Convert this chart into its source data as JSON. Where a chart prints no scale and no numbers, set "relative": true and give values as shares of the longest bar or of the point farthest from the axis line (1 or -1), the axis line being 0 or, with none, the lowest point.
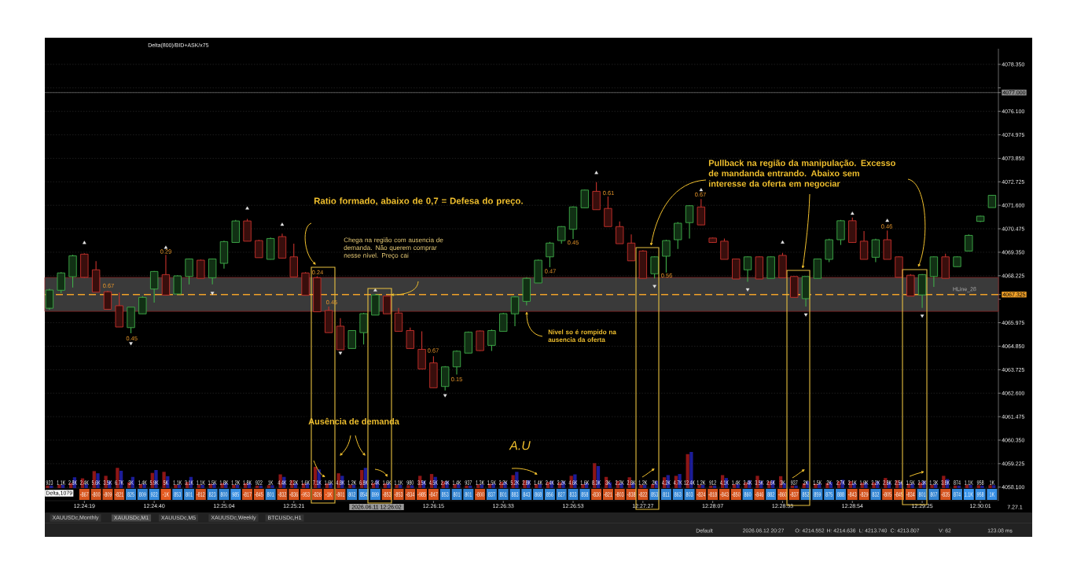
{
  "chart_data": [
    {
      "type": "candlestick",
      "title": "Delta(800)/BID+ASK/x75",
      "categories": [
        null,
        null,
        null,
        "12:24:19",
        null,
        null,
        null,
        null,
        null,
        "12:24:40",
        null,
        null,
        null,
        null,
        null,
        "12:25:04",
        null,
        null,
        null,
        null,
        null,
        "12:25:21",
        null,
        null,
        null,
        null,
        null,
        null,
        null,
        null,
        null,
        null,
        null,
        "12:26:15",
        null,
        null,
        null,
        null,
        null,
        "12:26:33",
        null,
        null,
        null,
        null,
        null,
        "12:26:53",
        null,
        null,
        null,
        null,
        null,
        "12:27:27",
        null,
        null,
        null,
        null,
        null,
        "12:28:07",
        null,
        null,
        null,
        null,
        null,
        "12:28:33",
        null,
        null,
        null,
        null,
        null,
        "12:28:54",
        null,
        null,
        null,
        null,
        null,
        "12:29:25",
        null,
        null,
        null,
        null,
        "12:30:01",
        null
      ],
      "ohlc": [
        [
          4066.67,
          4067.6,
          4066.6,
          4067.54
        ],
        [
          4067.53,
          4068.4,
          4067.39,
          4068.36
        ],
        [
          4068.18,
          4069.23,
          4067.66,
          4069.18
        ],
        [
          4069.26,
          4069.3,
          4068.12,
          4068.15
        ],
        [
          4068.51,
          4068.92,
          4067.44,
          4067.44
        ],
        [
          4067.46,
          4067.5,
          4066.62,
          4066.62
        ],
        [
          4066.79,
          4067.42,
          4065.77,
          4065.77
        ],
        [
          4065.74,
          4066.72,
          4065.47,
          4066.72
        ],
        [
          4066.4,
          4067.25,
          4066.4,
          4067.19
        ],
        [
          4067.59,
          4068.45,
          4066.94,
          4068.43
        ],
        [
          4068.28,
          4069.23,
          4067.3,
          4067.3
        ],
        [
          4067.35,
          4068.25,
          4067.35,
          4068.22
        ],
        [
          4068.19,
          4069.05,
          4067.81,
          4069.03
        ],
        [
          4068.97,
          4069.0,
          4068.1,
          4068.1
        ],
        [
          4068.13,
          4069.05,
          4067.81,
          4069.03
        ],
        [
          4068.82,
          4069.9,
          4068.57,
          4069.86
        ],
        [
          4069.82,
          4070.9,
          4069.82,
          4070.85
        ],
        [
          4070.85,
          4070.95,
          4069.88,
          4069.88
        ],
        [
          4069.91,
          4069.95,
          4069.09,
          4069.09
        ],
        [
          4069.01,
          4070.05,
          4069.0,
          4070.01
        ],
        [
          4070.1,
          4070.24,
          4069.07,
          4069.07
        ],
        [
          4069.13,
          4069.76,
          4068.17,
          4068.17
        ],
        [
          4068.36,
          4068.4,
          4067.29,
          4067.29
        ],
        [
          4068.13,
          4068.2,
          4066.5,
          4066.5
        ],
        [
          4066.56,
          4066.75,
          4065.5,
          4065.5
        ],
        [
          4065.81,
          4066.19,
          4064.68,
          4064.68
        ],
        [
          4064.74,
          4065.6,
          4064.74,
          4065.6
        ],
        [
          4065.5,
          4066.45,
          4064.93,
          4066.41
        ],
        [
          4066.34,
          4067.35,
          4066.34,
          4067.31
        ],
        [
          4067.25,
          4067.3,
          4066.4,
          4066.4
        ],
        [
          4066.44,
          4066.68,
          4065.56,
          4065.56
        ],
        [
          4065.6,
          4065.74,
          4064.74,
          4064.74
        ],
        [
          4064.7,
          4065.56,
          4063.76,
          4063.76
        ],
        [
          4064.05,
          4064.37,
          4062.86,
          4062.86
        ],
        [
          4062.92,
          4063.9,
          4062.73,
          4063.86
        ],
        [
          4063.86,
          4064.65,
          4063.49,
          4064.61
        ],
        [
          4064.52,
          4065.55,
          4064.52,
          4065.52
        ],
        [
          4065.58,
          4065.6,
          4064.62,
          4064.64
        ],
        [
          4064.89,
          4065.65,
          4064.62,
          4065.6
        ],
        [
          4065.56,
          4066.45,
          4065.56,
          4066.41
        ],
        [
          4066.4,
          4067.25,
          4065.81,
          4067.21
        ],
        [
          4067.0,
          4068.15,
          4066.81,
          4068.1
        ],
        [
          4067.88,
          4069.0,
          4067.88,
          4068.97
        ],
        [
          4069.13,
          4069.85,
          4068.63,
          4069.79
        ],
        [
          4069.91,
          4070.6,
          4069.76,
          4070.58
        ],
        [
          4070.45,
          4071.55,
          4069.99,
          4071.52
        ],
        [
          4071.48,
          4072.35,
          4071.48,
          4072.33
        ],
        [
          4072.27,
          4072.71,
          4071.39,
          4071.39
        ],
        [
          4071.45,
          4072.02,
          4070.58,
          4070.58
        ],
        [
          4070.58,
          4070.83,
          4069.76,
          4069.76
        ],
        [
          4069.79,
          4070.2,
          4068.94,
          4068.94
        ],
        [
          4069.41,
          4069.45,
          4068.1,
          4068.1
        ],
        [
          4068.32,
          4069.15,
          4068.1,
          4069.13
        ],
        [
          4069.16,
          4069.95,
          4068.38,
          4069.91
        ],
        [
          4069.95,
          4070.8,
          4069.51,
          4070.74
        ],
        [
          4070.77,
          4071.6,
          4070.01,
          4071.58
        ],
        [
          4071.52,
          4071.9,
          4070.66,
          4070.66
        ],
        [
          4070.03,
          4070.05,
          4069.8,
          4069.82
        ],
        [
          4069.88,
          4070.01,
          4069.01,
          4069.01
        ],
        [
          4069.03,
          4069.05,
          4068.07,
          4068.07
        ],
        [
          4068.51,
          4069.15,
          4067.94,
          4069.13
        ],
        [
          4069.13,
          4069.15,
          4068.07,
          4068.07
        ],
        [
          4068.1,
          4069.15,
          4068.1,
          4069.13
        ],
        [
          4069.2,
          4069.32,
          4068.13,
          4068.13
        ],
        [
          4068.19,
          4068.2,
          4067.19,
          4067.19
        ],
        [
          4067.13,
          4068.2,
          4066.75,
          4068.19
        ],
        [
          4068.1,
          4069.05,
          4068.1,
          4069.03
        ],
        [
          4069.01,
          4070.0,
          4068.88,
          4069.95
        ],
        [
          4069.95,
          4070.9,
          4069.7,
          4070.86
        ],
        [
          4070.86,
          4071.01,
          4069.82,
          4069.82
        ],
        [
          4069.88,
          4070.36,
          4069.01,
          4069.01
        ],
        [
          4069.11,
          4070.0,
          4068.88,
          4069.95
        ],
        [
          4069.95,
          4070.39,
          4069.01,
          4069.01
        ],
        [
          4069.13,
          4069.15,
          4068.15,
          4068.15
        ],
        [
          4068.25,
          4068.3,
          4067.25,
          4067.25
        ],
        [
          4067.31,
          4068.3,
          4066.68,
          4068.28
        ],
        [
          4068.19,
          4069.15,
          4067.69,
          4069.13
        ],
        [
          4069.13,
          4069.28,
          4068.1,
          4068.1
        ],
        [
          4068.66,
          4069.15,
          4068.66,
          4069.13
        ],
        [
          4069.41,
          4070.2,
          4069.41,
          4070.16
        ],
        [
          4070.83,
          4071.1,
          4070.8,
          4071.08
        ],
        [
          4071.49,
          4072.1,
          4071.49,
          4072.08
        ]
      ],
      "colors": [
        "#3fae49",
        "#3fae49",
        "#3fae49",
        "#c8322c",
        "#c8322c",
        "#c8322c",
        "#c8322c",
        "#3fae49",
        "#3fae49",
        "#3fae49",
        "#c8322c",
        "#3fae49",
        "#3fae49",
        "#c8322c",
        "#3fae49",
        "#3fae49",
        "#3fae49",
        "#c8322c",
        "#c8322c",
        "#3fae49",
        "#c8322c",
        "#c8322c",
        "#c8322c",
        "#c8322c",
        "#c8322c",
        "#c8322c",
        "#3fae49",
        "#3fae49",
        "#3fae49",
        "#c8322c",
        "#c8322c",
        "#c8322c",
        "#c8322c",
        "#c8322c",
        "#3fae49",
        "#3fae49",
        "#3fae49",
        "#c8322c",
        "#3fae49",
        "#3fae49",
        "#3fae49",
        "#3fae49",
        "#3fae49",
        "#3fae49",
        "#3fae49",
        "#3fae49",
        "#3fae49",
        "#c8322c",
        "#c8322c",
        "#c8322c",
        "#c8322c",
        "#c8322c",
        "#3fae49",
        "#3fae49",
        "#3fae49",
        "#3fae49",
        "#c8322c",
        "#c8322c",
        "#c8322c",
        "#c8322c",
        "#3fae49",
        "#c8322c",
        "#3fae49",
        "#c8322c",
        "#c8322c",
        "#3fae49",
        "#3fae49",
        "#3fae49",
        "#3fae49",
        "#c8322c",
        "#c8322c",
        "#3fae49",
        "#c8322c",
        "#c8322c",
        "#c8322c",
        "#3fae49",
        "#3fae49",
        "#c8322c",
        "#3fae49",
        "#3fae49",
        "#3fae49",
        "#3fae49"
      ],
      "series": [
        {
          "type": "scatter",
          "marker": "triangle",
          "color": "#e6e6e6",
          "values": [
            null,
            null,
            null,
            4069.8,
            null,
            null,
            null,
            null,
            null,
            null,
            4069.57,
            null,
            null,
            null,
            null,
            null,
            null,
            4071.45,
            null,
            null,
            4070.67,
            null,
            null,
            null,
            null,
            null,
            null,
            null,
            4067.53,
            null,
            null,
            null,
            null,
            null,
            null,
            null,
            null,
            null,
            null,
            null,
            null,
            null,
            null,
            null,
            null,
            null,
            null,
            4073.15,
            null,
            null,
            null,
            null,
            null,
            null,
            null,
            null,
            4072.33,
            null,
            null,
            null,
            null,
            null,
            null,
            4069.82,
            null,
            null,
            null,
            null,
            null,
            4071.2,
            null,
            null,
            4070.86,
            null,
            null,
            null,
            null,
            null,
            null,
            null,
            null,
            null
          ]
        },
        {
          "type": "scatter",
          "marker": "triangle_down",
          "color": "#e6e6e6",
          "values": [
            null,
            null,
            null,
            null,
            null,
            null,
            null,
            4064.99,
            null,
            null,
            null,
            null,
            null,
            null,
            4067.4,
            null,
            null,
            null,
            null,
            null,
            null,
            null,
            null,
            null,
            null,
            4064.53,
            null,
            null,
            null,
            null,
            null,
            null,
            null,
            null,
            4062.5,
            null,
            null,
            null,
            null,
            null,
            null,
            null,
            null,
            null,
            null,
            null,
            null,
            null,
            null,
            null,
            null,
            null,
            4067.73,
            null,
            null,
            null,
            null,
            null,
            null,
            null,
            4067.57,
            null,
            null,
            null,
            null,
            4066.37,
            null,
            null,
            null,
            null,
            null,
            null,
            null,
            null,
            null,
            4066.31,
            null,
            null,
            null,
            null,
            null,
            null
          ]
        }
      ],
      "ylim": [
        4057.45,
        4079.1
      ],
      "yticks": [
        {
          "value": 4058.1,
          "label": "4058.100"
        },
        {
          "value": 4059.225,
          "label": "4059.225"
        },
        {
          "value": 4060.35,
          "label": "4060.350"
        },
        {
          "value": 4061.475,
          "label": "4061.475"
        },
        {
          "value": 4062.6,
          "label": "4062.600"
        },
        {
          "value": 4063.725,
          "label": "4063.725"
        },
        {
          "value": 4064.85,
          "label": "4064.850"
        },
        {
          "value": 4065.975,
          "label": "4065.975"
        },
        {
          "value": 4067.1,
          "label": null
        },
        {
          "value": 4067.325,
          "label": "4067.325"
        },
        {
          "value": 4068.225,
          "label": "4068.225"
        },
        {
          "value": 4069.35,
          "label": "4069.350"
        },
        {
          "value": 4070.475,
          "label": "4070.475"
        },
        {
          "value": 4071.6,
          "label": "4071.600"
        },
        {
          "value": 4072.725,
          "label": "4072.725"
        },
        {
          "value": 4073.85,
          "label": "4073.850"
        },
        {
          "value": 4074.975,
          "label": "4074.975"
        },
        {
          "value": 4076.1,
          "label": "4076.100"
        },
        {
          "value": 4077.0,
          "label": "4077.000"
        },
        {
          "value": 4077.225,
          "label": null
        },
        {
          "value": 4078.35,
          "label": "4078.350"
        }
      ],
      "grid": "y",
      "ref_lines": [
        {
          "axis": "y",
          "value": 4077.0,
          "color": "#8c8c8c"
        },
        {
          "axis": "y",
          "value": 4067.325,
          "label": "HLine_28",
          "color": "#f0a028",
          "line_style": "dashed"
        }
      ],
      "bands": [
        {
          "axis": "y",
          "from": 4066.52,
          "to": 4068.14,
          "color": "#3a3a3a"
        }
      ],
      "annotations": [
        "Ratio formado, abaixo de 0,7 = Defesa do preço.",
        "Chega na região com ausencia de demanda. Não querem comprar nesse nível. Preço cai",
        {
          "text": "Nivel so é rompido na ausencia da oferta",
          "y": 4066.52
        },
        "Pullback na região da manipulação. Excesso de mandanda entrando. Abaixo sem interesse da oferta em negociar",
        "Ausência de demanda",
        "A.U",
        "0.67",
        "0.45",
        "0.29",
        "0.24",
        "0.45",
        "0.67",
        "0.15",
        "0.47",
        "0.45",
        "0.61",
        "0.56",
        "0.67",
        "0.46",
        "2026.06.11 12:26:02",
        "7.27.1",
        "XAUUSDc,Monthly",
        "XAUUSDc,M1",
        "XAUUSDc,M5",
        "XAUUSDc,Weekly",
        "BTCUSDc,H1",
        "Default",
        "2026.06.12 20:27",
        "O: 4214.552",
        "H: 4214.636",
        "L: 4213.740",
        "C: 4213.807",
        "V: 62",
        "123.08 ms"
      ]
    },
    {
      "type": "bar",
      "relative": true,
      "categories": [
        null,
        null,
        null,
        null,
        null,
        null,
        null,
        null,
        null,
        null,
        null,
        null,
        null,
        null,
        null,
        null,
        null,
        null,
        null,
        null,
        null,
        null,
        null,
        null,
        null,
        null,
        null,
        null,
        null,
        null,
        null,
        null,
        null,
        null,
        null,
        null,
        null,
        null,
        null,
        null,
        null,
        null,
        null,
        null,
        null,
        null,
        null,
        null,
        null,
        null,
        null,
        null,
        null,
        null,
        null,
        null,
        null,
        null,
        null,
        null,
        null,
        null,
        null,
        null,
        null,
        null,
        null,
        null,
        null,
        null,
        null,
        null,
        null,
        null,
        null,
        null,
        null,
        null,
        null,
        null,
        null,
        null
      ],
      "series": [
        {
          "color": "#8e1616",
          "values": [
            0.07,
            0.09,
            0.14,
            0.27,
            0.47,
            0.34,
            0.56,
            0.16,
            0.11,
            0.42,
            0.45,
            0.09,
            0.17,
            0.09,
            0.12,
            0.14,
            0.09,
            0.14,
            0.07,
            0.08,
            0.38,
            0.22,
            0.13,
            0.59,
            0.13,
            0.41,
            0.09,
            0.5,
            0.14,
            0.13,
            0.09,
            0.08,
            0.34,
            0.39,
            0.19,
            0.11,
            0.07,
            0.1,
            0.12,
            0.17,
            0.36,
            0.22,
            0.11,
            0.17,
            0.16,
            0.34,
            0.11,
            0.69,
            0.31,
            0.2,
            0.3,
            0.09,
            0.11,
            0.3,
            0.34,
            0.94,
            0.09,
            0.07,
            0.36,
            0.11,
            0.16,
            0.34,
            0.19,
            0.33,
            0.07,
            0.13,
            0.12,
            0.14,
            0.19,
            0.19,
            0.15,
            0.16,
            0.28,
            0.22,
            0.12,
            0.16,
            0.09,
            0.34,
            0.07,
            0.09,
            0.08,
            0.08
          ]
        },
        {
          "color": "#1c1c98",
          "values": [
            0.07,
            0.09,
            0.3,
            0.11,
            0.41,
            0.2,
            0.48,
            0.31,
            0.11,
            0.5,
            0.33,
            0.09,
            0.31,
            0.09,
            0.12,
            0.14,
            0.09,
            0.14,
            0.07,
            0.08,
            0.31,
            0.13,
            0.13,
            0.52,
            0.13,
            0.34,
            0.09,
            0.56,
            0.23,
            0.13,
            0.09,
            0.08,
            0.2,
            0.31,
            0.19,
            0.11,
            0.07,
            0.1,
            0.12,
            0.17,
            0.45,
            0.22,
            0.11,
            0.2,
            0.19,
            0.38,
            0.14,
            0.61,
            0.16,
            0.14,
            0.14,
            0.09,
            0.2,
            0.36,
            0.39,
            1.0,
            0.09,
            0.07,
            0.28,
            0.11,
            0.22,
            0.2,
            0.22,
            0.14,
            0.07,
            0.19,
            0.12,
            0.17,
            0.23,
            0.14,
            0.15,
            0.19,
            0.16,
            0.17,
            0.12,
            0.2,
            0.11,
            0.25,
            0.07,
            0.09,
            0.07,
            0.08
          ]
        }
      ]
    },
    {
      "type": "heatmap",
      "categories": [
        null,
        null,
        null,
        null,
        null,
        null,
        null,
        null,
        null,
        null,
        null,
        null,
        null,
        null,
        null,
        null,
        null,
        null,
        null,
        null,
        null,
        null,
        null,
        null,
        null,
        null,
        null,
        null,
        null,
        null,
        null,
        null,
        null,
        null,
        null,
        null,
        null,
        null,
        null,
        null,
        null,
        null,
        null,
        null,
        null,
        null,
        null,
        null,
        null,
        null,
        null,
        null,
        null,
        null,
        null,
        null,
        null,
        null,
        null,
        null,
        null,
        null,
        null,
        null,
        null,
        null,
        null,
        null,
        null,
        null,
        null,
        null,
        null,
        null,
        null,
        null,
        null,
        null,
        null,
        null,
        null,
        null
      ],
      "y_categories": [
        "Delta,1079"
      ],
      "cells": [
        [
          null,
          null,
          null,
          -867,
          -800,
          -809,
          -821,
          825,
          809,
          922,
          -1000,
          853,
          801,
          -812,
          823,
          800,
          985,
          -817,
          -845,
          801,
          -832,
          -836,
          -953,
          -826,
          -1000,
          -801,
          802,
          854,
          899,
          -853,
          -853,
          -834,
          -985,
          -847,
          853,
          801,
          801,
          -800,
          837,
          801,
          883,
          843,
          868,
          856,
          827,
          833,
          858,
          -830,
          -821,
          -803,
          -838,
          -822,
          853,
          811,
          863,
          803,
          -824,
          -818,
          -843,
          -850,
          860,
          -846,
          882,
          -860,
          -837,
          852,
          859,
          875,
          888,
          -843,
          -829,
          832,
          -805,
          -845,
          -834,
          801,
          807,
          -835,
          874,
          1100,
          958,
          1000
        ]
      ],
      "cell_labels": [
        [
          null,
          null,
          null,
          "-867",
          "-800",
          "-809",
          "-821",
          "825",
          "809",
          "922",
          "-1K",
          "853",
          "801",
          "-812",
          "823",
          "800",
          "985",
          "-817",
          "-845",
          "801",
          "-832",
          "-836",
          "-953",
          "-826",
          "-1K",
          "-801",
          "802",
          "854",
          "899",
          "-853",
          "-853",
          "-834",
          "-985",
          "-847",
          "853",
          "801",
          "801",
          "-800",
          "837",
          "801",
          "883",
          "843",
          "868",
          "856",
          "827",
          "833",
          "858",
          "-830",
          "-821",
          "-803",
          "-838",
          "-822",
          "853",
          "811",
          "863",
          "803",
          "-824",
          "-818",
          "-843",
          "-850",
          "860",
          "-846",
          "882",
          "-860",
          "-837",
          "852",
          "859",
          "875",
          "888",
          "-843",
          "-829",
          "832",
          "-805",
          "-845",
          "-834",
          "801",
          "807",
          "-835",
          "874",
          "1.1K",
          "958",
          "1K"
        ]
      ]
    },
    {
      "type": "other",
      "annotations": [
        "923",
        "1.1K",
        "2.8K",
        "2.4K",
        "5.6K",
        "3.5K",
        "6.7K",
        "3K",
        "1.4K",
        "5.9K",
        "5K",
        "1.1K",
        "3.1K",
        "1.1K",
        "1.5K",
        "1.8K",
        "1.2K",
        "1.8K",
        "922",
        "1K",
        "4.4K",
        "2.2K",
        "1.6K",
        "7.1K",
        "1.6K",
        "4.8K",
        "1.2K",
        "6.8K",
        "2.4K",
        "1.6K",
        "1.1K",
        "980",
        "3.5K",
        "4.5K",
        "2.4K",
        "1.4K",
        "937",
        "1.3K",
        "1.5K",
        "2.2K",
        "5.2K",
        "2.8K",
        "1.4K",
        "2.4K",
        "2.2K",
        "4.6K",
        "1.6K",
        "8.3K",
        "3K",
        "2.2K",
        "2.8K",
        "1.2K",
        "2K",
        "4.2K",
        "4.7K",
        "12.4K",
        "1.2K",
        "912",
        "4.1K",
        "1.4K",
        "2.4K",
        "3.5K",
        "2.6K",
        "3K",
        "937",
        "2K",
        "1.5K",
        "2K",
        "2.7K",
        "2.1K",
        "1.9K",
        "2.2K",
        "2.8K",
        "2.5K",
        "1.5K",
        "2.3K",
        "1.3K",
        "3.8K",
        "874",
        "1.1K",
        "958",
        "1K"
      ]
    }
  ]
}
